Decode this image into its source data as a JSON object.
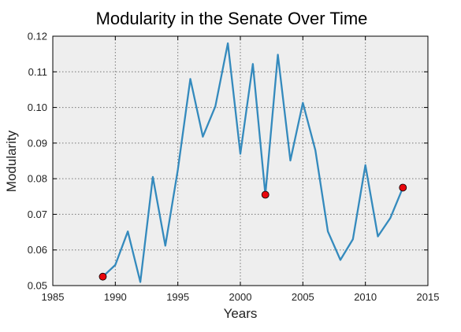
{
  "chart_data": {
    "type": "line",
    "title": "Modularity in the Senate Over Time",
    "xlabel": "Years",
    "ylabel": "Modularity",
    "xlim": [
      1985,
      2015
    ],
    "ylim": [
      0.05,
      0.12
    ],
    "xticks": [
      "1985",
      "1990",
      "1995",
      "2000",
      "2005",
      "2010",
      "2015"
    ],
    "yticks": [
      "0.05",
      "0.06",
      "0.07",
      "0.08",
      "0.09",
      "0.10",
      "0.11",
      "0.12"
    ],
    "grid": true,
    "series": [
      {
        "x": [
          1989,
          1990,
          1991,
          1992,
          1993,
          1994,
          1995,
          1996,
          1997,
          1998,
          1999,
          2000,
          2001,
          2002,
          2003,
          2004,
          2005,
          2006,
          2007,
          2008,
          2009,
          2010,
          2011,
          2012,
          2013
        ],
        "values": [
          0.0525,
          0.0558,
          0.0652,
          0.051,
          0.0805,
          0.0612,
          0.0825,
          0.108,
          0.0918,
          0.1003,
          0.118,
          0.087,
          0.1122,
          0.0755,
          0.1148,
          0.0851,
          0.1013,
          0.088,
          0.0652,
          0.0572,
          0.063,
          0.0838,
          0.0638,
          0.069,
          0.0775
        ]
      }
    ],
    "highlighted_points": [
      {
        "x": 1989,
        "y": 0.0525
      },
      {
        "x": 2002,
        "y": 0.0755
      },
      {
        "x": 2013,
        "y": 0.0775
      }
    ],
    "colors": {
      "line": "#348abd",
      "marker": "#e8070d",
      "plot_background": "#eeeeee",
      "grid": "#777777"
    }
  }
}
